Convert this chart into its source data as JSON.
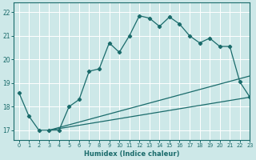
{
  "xlabel": "Humidex (Indice chaleur)",
  "ylabel": "",
  "bg_color": "#cde8e8",
  "grid_color": "#ffffff",
  "line_color": "#1a6b6b",
  "xlim": [
    -0.5,
    23
  ],
  "ylim": [
    16.6,
    22.4
  ],
  "xticks": [
    0,
    1,
    2,
    3,
    4,
    5,
    6,
    7,
    8,
    9,
    10,
    11,
    12,
    13,
    14,
    15,
    16,
    17,
    18,
    19,
    20,
    21,
    22,
    23
  ],
  "yticks": [
    17,
    18,
    19,
    20,
    21,
    22
  ],
  "line1_x": [
    0,
    1,
    2,
    3,
    4,
    5,
    6,
    7,
    8,
    9,
    10,
    11,
    12,
    13,
    14,
    15,
    16,
    17,
    18,
    19,
    20,
    21,
    22,
    23
  ],
  "line1_y": [
    18.6,
    17.6,
    17.0,
    17.0,
    17.0,
    18.0,
    18.3,
    19.5,
    19.6,
    20.7,
    20.3,
    21.0,
    21.85,
    21.75,
    21.4,
    21.8,
    21.5,
    21.0,
    20.7,
    20.9,
    20.55,
    20.55,
    19.05,
    18.4
  ],
  "line2_x": [
    3,
    23
  ],
  "line2_y": [
    17.0,
    19.3
  ],
  "line3_x": [
    3,
    23
  ],
  "line3_y": [
    17.0,
    18.4
  ]
}
